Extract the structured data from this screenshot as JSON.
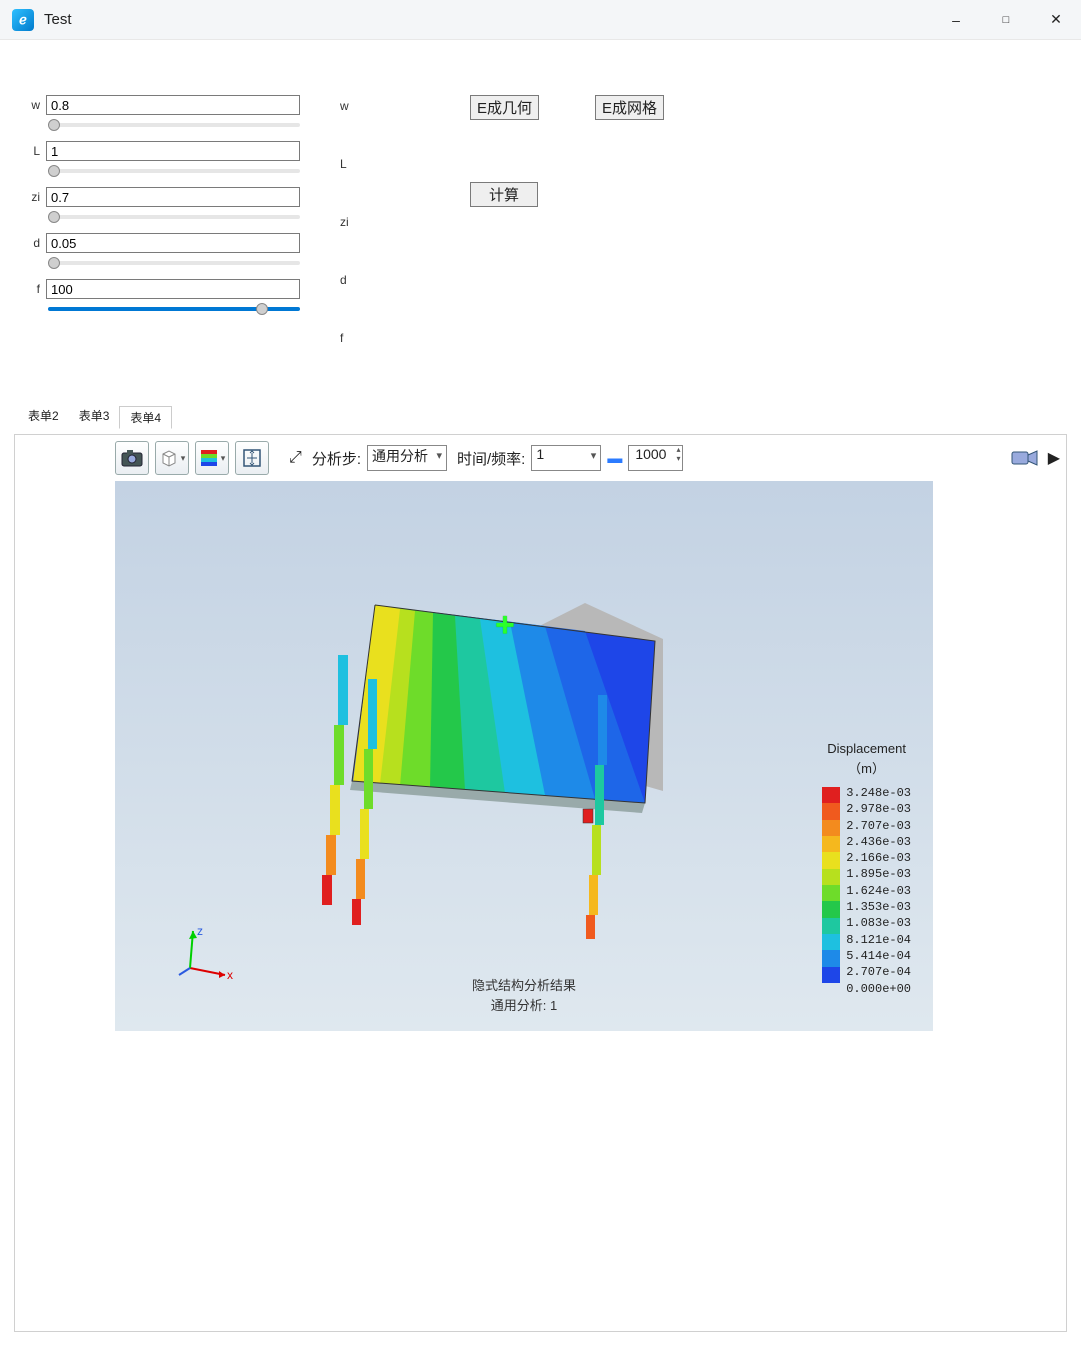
{
  "window": {
    "title": "Test",
    "icon_glyph": "ℯ"
  },
  "params": {
    "rows": [
      {
        "label": "w",
        "value": "0.8",
        "thumb_pct": 0,
        "track_blue": false
      },
      {
        "label": "L",
        "value": "1",
        "thumb_pct": 0,
        "track_blue": false
      },
      {
        "label": "zi",
        "value": "0.7",
        "thumb_pct": 0,
        "track_blue": false
      },
      {
        "label": "d",
        "value": "0.05",
        "thumb_pct": 0,
        "track_blue": false
      },
      {
        "label": "f",
        "value": "100",
        "thumb_pct": 98,
        "track_blue": true
      }
    ],
    "echo_labels": [
      "w",
      "L",
      "zi",
      "d",
      "f"
    ]
  },
  "buttons": {
    "gen_geometry": "E成几何",
    "gen_mesh": "E成网格",
    "compute": "计算"
  },
  "tabs": {
    "items": [
      "表单2",
      "表单3",
      "表单4"
    ],
    "active_index": 2
  },
  "toolbar": {
    "step_label": "分析步:",
    "step_select_value": "通用分析",
    "time_label": "时间/频率:",
    "time_select_value": "1",
    "spin_value": "1000"
  },
  "result": {
    "caption_line1": "隐式结构分析结果",
    "caption_line2": "通用分析: 1",
    "axis": {
      "x": "x",
      "z": "z"
    },
    "legend": {
      "title": "Displacement",
      "unit": "（m）",
      "values": [
        "3.248e-03",
        "2.978e-03",
        "2.707e-03",
        "2.436e-03",
        "2.166e-03",
        "1.895e-03",
        "1.624e-03",
        "1.353e-03",
        "1.083e-03",
        "8.121e-04",
        "5.414e-04",
        "2.707e-04",
        "0.000e+00"
      ],
      "colors": [
        "#e01f1f",
        "#f05a1e",
        "#f38b1e",
        "#f5b81e",
        "#e9e01e",
        "#b7e01e",
        "#6edc2a",
        "#24c84a",
        "#1ec8a0",
        "#1ec0e0",
        "#1e8ae8",
        "#1e46e8"
      ]
    },
    "contour_bands": [
      "#b8b8b8",
      "#1e46e8",
      "#1e66e8",
      "#1e8ae8",
      "#1eaee8",
      "#1ec8c8",
      "#24c88a",
      "#4ed040",
      "#8fe028",
      "#d0e81e",
      "#f5c81e",
      "#f38b1e",
      "#f05a1e",
      "#e01f1f"
    ]
  }
}
